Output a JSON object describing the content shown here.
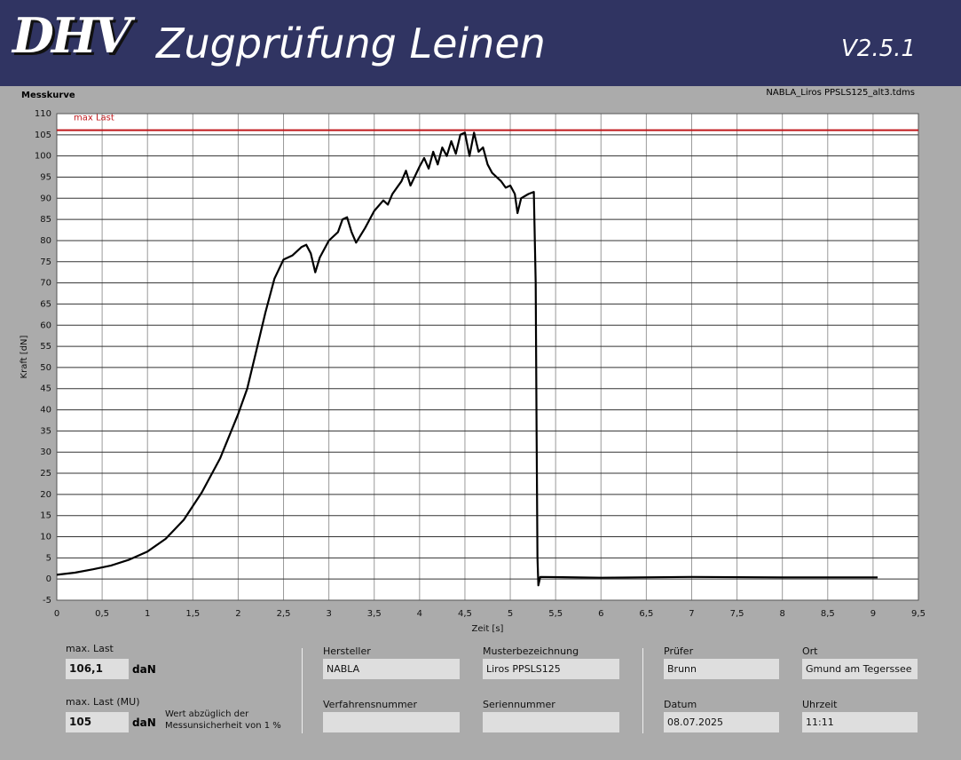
{
  "header": {
    "logo": "DHV",
    "title": "Zugprüfung Leinen",
    "version": "V2.5.1"
  },
  "section_label": "Messkurve",
  "file_name": "NABLA_Liros PPSLS125_alt3.tdms",
  "chart_data": {
    "type": "line",
    "x_label": "Zeit [s]",
    "y_label": "Kraft [dN]",
    "xlim": [
      0,
      9.5
    ],
    "ylim": [
      -5,
      110
    ],
    "xticks": [
      0,
      {
        "value": 0.5,
        "label": "0,5"
      },
      1,
      {
        "value": 1.5,
        "label": "1,5"
      },
      2,
      {
        "value": 2.5,
        "label": "2,5"
      },
      3,
      {
        "value": 3.5,
        "label": "3,5"
      },
      4,
      {
        "value": 4.5,
        "label": "4,5"
      },
      5,
      {
        "value": 5.5,
        "label": "5,5"
      },
      6,
      {
        "value": 6.5,
        "label": "6,5"
      },
      7,
      {
        "value": 7.5,
        "label": "7,5"
      },
      8,
      {
        "value": 8.5,
        "label": "8,5"
      },
      9,
      {
        "value": 9.5,
        "label": "9,5"
      }
    ],
    "yticks": [
      -5,
      0,
      5,
      10,
      15,
      20,
      25,
      30,
      35,
      40,
      45,
      50,
      55,
      60,
      65,
      70,
      75,
      80,
      85,
      90,
      95,
      100,
      105,
      110
    ],
    "grid": true,
    "max_line": {
      "name": "max Last",
      "value": 106.1,
      "color": "#c0181c"
    },
    "x": [
      0,
      0.2,
      0.4,
      0.6,
      0.8,
      1.0,
      1.2,
      1.4,
      1.6,
      1.8,
      2.0,
      2.1,
      2.2,
      2.3,
      2.4,
      2.5,
      2.6,
      2.7,
      2.75,
      2.8,
      2.85,
      2.9,
      3.0,
      3.1,
      3.15,
      3.2,
      3.25,
      3.3,
      3.4,
      3.5,
      3.6,
      3.65,
      3.7,
      3.8,
      3.85,
      3.9,
      4.0,
      4.05,
      4.1,
      4.15,
      4.2,
      4.25,
      4.3,
      4.35,
      4.4,
      4.45,
      4.5,
      4.55,
      4.6,
      4.65,
      4.7,
      4.75,
      4.8,
      4.9,
      4.95,
      5.0,
      5.05,
      5.08,
      5.12,
      5.2,
      5.26,
      5.28,
      5.29,
      5.3,
      5.31,
      5.33,
      6,
      7,
      8,
      9.05
    ],
    "series": [
      {
        "color": "#000000",
        "values": [
          1,
          1.5,
          2.3,
          3.2,
          4.6,
          6.5,
          9.5,
          14,
          20.5,
          28.5,
          39,
          45,
          54,
          63,
          71,
          75.5,
          76.5,
          78.5,
          79,
          77,
          72.5,
          76,
          80,
          82,
          85,
          85.5,
          82,
          79.5,
          83,
          87,
          89.5,
          88.5,
          91,
          94,
          96.5,
          93,
          97.5,
          99.5,
          97,
          101,
          98,
          102,
          100,
          103.5,
          100.5,
          105,
          105.5,
          100,
          105.5,
          101,
          102,
          98,
          96,
          94,
          92.5,
          93,
          91,
          86.5,
          90,
          91,
          91.5,
          70,
          35,
          5,
          -1.5,
          0.5,
          0.3,
          0.5,
          0.4,
          0.4
        ]
      }
    ]
  },
  "panel": {
    "max_last": {
      "label": "max. Last",
      "value": "106,1",
      "unit": "daN"
    },
    "max_last_mu": {
      "label": "max. Last (MU)",
      "value": "105",
      "unit": "daN",
      "note": [
        "Wert abzüglich der",
        "Messunsicherheit von 1 %"
      ]
    },
    "fields": [
      {
        "label": "Hersteller",
        "value": "NABLA"
      },
      {
        "label": "Musterbezeichnung",
        "value": "Liros PPSLS125"
      },
      {
        "label": "Verfahrensnummer"
      },
      {
        "label": "Seriennummer"
      },
      {
        "label": "Prüfer",
        "value": "Brunn"
      },
      {
        "label": "Ort",
        "value": "Gmund am Tegerssee"
      },
      {
        "label": "Datum",
        "value": "08.07.2025"
      },
      {
        "label": "Uhrzeit",
        "value": "11:11"
      }
    ]
  }
}
